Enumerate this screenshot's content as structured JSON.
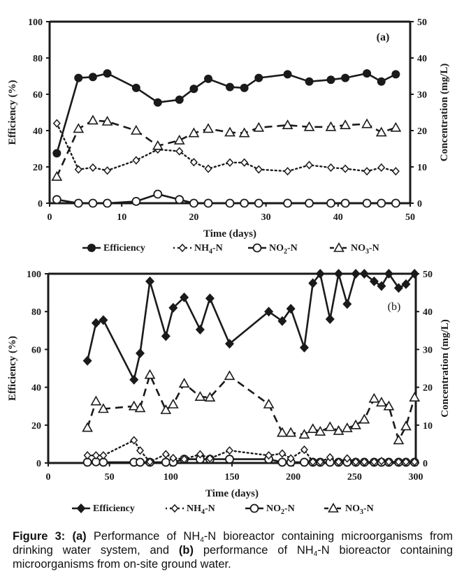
{
  "colors": {
    "ink": "#1a1a1a",
    "background": "#ffffff"
  },
  "chart_data": [
    {
      "type": "line",
      "panel_label": "(a)",
      "xlabel": "Time (days)",
      "ylabel": "Efficiency  (%)",
      "y2label": "Concentration (mg/L)",
      "xlim": [
        0,
        50
      ],
      "ylim": [
        0,
        100
      ],
      "y2lim": [
        0,
        50
      ],
      "xticks": [
        "0",
        "10",
        "20",
        "30",
        "40",
        "50"
      ],
      "yticks": [
        "0",
        "20",
        "40",
        "60",
        "80",
        "100"
      ],
      "y2ticks": [
        "0",
        "10",
        "20",
        "30",
        "40",
        "50"
      ],
      "legend_position": "bottom",
      "grid": false,
      "series": [
        {
          "name": "Efficiency",
          "axis": "left",
          "marker": "circle-filled",
          "line": "solid",
          "x": [
            1,
            4,
            6,
            8,
            12,
            15,
            18,
            20,
            22,
            25,
            27,
            29,
            33,
            36,
            39,
            41,
            44,
            46,
            48
          ],
          "values": [
            27.5,
            69,
            69.5,
            71.5,
            63.5,
            55.5,
            57,
            63,
            68.5,
            64,
            63.5,
            69,
            71,
            67,
            68,
            69,
            71.5,
            67,
            71
          ]
        },
        {
          "name": "NH4-N",
          "axis": "right",
          "marker": "diamond-open",
          "line": "dotted",
          "x": [
            1,
            4,
            6,
            8,
            12,
            15,
            18,
            20,
            22,
            25,
            27,
            29,
            33,
            36,
            39,
            41,
            44,
            46,
            48
          ],
          "values": [
            22,
            9.3,
            9.8,
            9,
            11.8,
            14.8,
            14.3,
            11.3,
            9.5,
            11.2,
            11.2,
            9.3,
            8.8,
            10.5,
            9.8,
            9.5,
            8.8,
            9.8,
            8.8
          ]
        },
        {
          "name": "NO2-N",
          "axis": "right",
          "marker": "circle-open",
          "line": "solid",
          "x": [
            1,
            4,
            6,
            8,
            12,
            15,
            18,
            20,
            22,
            25,
            27,
            29,
            33,
            36,
            39,
            41,
            44,
            46,
            48
          ],
          "values": [
            1,
            0,
            0,
            0,
            0.5,
            2.5,
            1,
            0,
            0,
            0,
            0,
            0,
            0,
            0,
            0,
            0,
            0,
            0,
            0
          ]
        },
        {
          "name": "NO3-N",
          "axis": "right",
          "marker": "triangle-open",
          "line": "dashed",
          "x": [
            1,
            4,
            6,
            8,
            12,
            15,
            18,
            20,
            22,
            25,
            27,
            29,
            33,
            36,
            39,
            41,
            44,
            46,
            48
          ],
          "values": [
            7.3,
            20.5,
            22.8,
            22.5,
            20,
            15.8,
            17.3,
            19.3,
            20.5,
            19.5,
            19.3,
            20.8,
            21.5,
            21,
            21,
            21.5,
            21.8,
            19.5,
            20.8
          ]
        }
      ]
    },
    {
      "type": "line",
      "panel_label": "(b)",
      "xlabel": "Time (days)",
      "ylabel": "Efficiency (%)",
      "y2label": "Concentration (mg/L)",
      "xlim": [
        0,
        300
      ],
      "ylim": [
        0,
        100
      ],
      "y2lim": [
        0,
        50
      ],
      "xticks": [
        "0",
        "50",
        "100",
        "150",
        "200",
        "250",
        "300"
      ],
      "yticks": [
        "0",
        "20",
        "40",
        "60",
        "80",
        "100"
      ],
      "y2ticks": [
        "0",
        "10",
        "20",
        "30",
        "40",
        "50"
      ],
      "legend_position": "bottom",
      "grid": false,
      "series": [
        {
          "name": "Efficiency",
          "axis": "left",
          "marker": "diamond-filled",
          "line": "solid",
          "x": [
            32,
            39,
            45,
            70,
            75,
            83,
            96,
            102,
            111,
            124,
            132,
            148,
            180,
            191,
            198,
            209,
            216,
            222,
            230,
            237,
            244,
            251,
            258,
            266,
            272,
            278,
            286,
            292,
            299
          ],
          "values": [
            54,
            74,
            75.5,
            44,
            58,
            96,
            67,
            82,
            87.5,
            70.5,
            87,
            63,
            80,
            75,
            81.5,
            61,
            95,
            100,
            76,
            100,
            84,
            100,
            100,
            96,
            93.5,
            100,
            92.5,
            94.5,
            100
          ]
        },
        {
          "name": "NH4-N",
          "axis": "right",
          "marker": "diamond-open",
          "line": "dotted",
          "x": [
            32,
            39,
            45,
            70,
            75,
            83,
            96,
            102,
            111,
            124,
            132,
            148,
            180,
            191,
            198,
            209,
            216,
            222,
            230,
            237,
            244,
            251,
            258,
            266,
            272,
            278,
            286,
            292,
            299
          ],
          "values": [
            2,
            2,
            2,
            6,
            3.3,
            0.3,
            2.3,
            1.3,
            1,
            2.3,
            1.2,
            3.3,
            2,
            2.5,
            1.2,
            3.5,
            0.3,
            0.3,
            1.5,
            0.3,
            1.2,
            0.3,
            0.3,
            0.3,
            0.5,
            0.3,
            0.3,
            0.3,
            0.3
          ]
        },
        {
          "name": "NO2-N",
          "axis": "right",
          "marker": "circle-open",
          "line": "solid",
          "x": [
            32,
            39,
            45,
            70,
            75,
            83,
            96,
            102,
            111,
            124,
            132,
            148,
            180,
            191,
            198,
            209,
            216,
            222,
            230,
            237,
            244,
            251,
            258,
            266,
            272,
            278,
            286,
            292,
            299
          ],
          "values": [
            0.2,
            0.3,
            0.2,
            0.2,
            0.2,
            0.2,
            0.2,
            0.2,
            1,
            1,
            1,
            1,
            1,
            0.2,
            0.2,
            0.2,
            0.2,
            0.2,
            0.2,
            0.2,
            0.2,
            0.2,
            0.2,
            0.2,
            0.2,
            0.2,
            0.2,
            0.2,
            0.2
          ]
        },
        {
          "name": "NO3-N",
          "axis": "right",
          "marker": "triangle-open",
          "line": "dashed",
          "x": [
            32,
            39,
            45,
            70,
            75,
            83,
            96,
            102,
            111,
            124,
            132,
            148,
            180,
            191,
            198,
            209,
            216,
            222,
            230,
            237,
            244,
            251,
            258,
            266,
            272,
            278,
            286,
            292,
            299
          ],
          "values": [
            9.3,
            16.3,
            14.3,
            15,
            14.5,
            23.3,
            14,
            15.5,
            21,
            17.5,
            17.3,
            23,
            15.5,
            8,
            8,
            7.5,
            9,
            8.3,
            9.5,
            8.5,
            9.2,
            10,
            11.5,
            17,
            16,
            15,
            6,
            9.7,
            17.3
          ]
        }
      ]
    }
  ],
  "legend": {
    "items": [
      {
        "name": "Efficiency",
        "text": "Efficiency"
      },
      {
        "name": "NH4-N",
        "text": "NH",
        "sub": "4",
        "suffix": "-N"
      },
      {
        "name": "NO2-N",
        "text": "NO",
        "sub": "2",
        "suffix": "-N"
      },
      {
        "name": "NO3-N",
        "text": "NO",
        "sub": "3",
        "suffix": "-N"
      }
    ]
  },
  "caption": {
    "label": "Figure 3:",
    "part_a": "(a)",
    "text_1": " Performance of NH",
    "sub_1": "4",
    "text_2": "-N bioreactor containing microorganisms from drinking water system, and ",
    "part_b": "(b)",
    "text_3": " performance of NH",
    "sub_2": "4",
    "text_4": "-N bioreactor containing microorganisms from on-site ground water."
  }
}
